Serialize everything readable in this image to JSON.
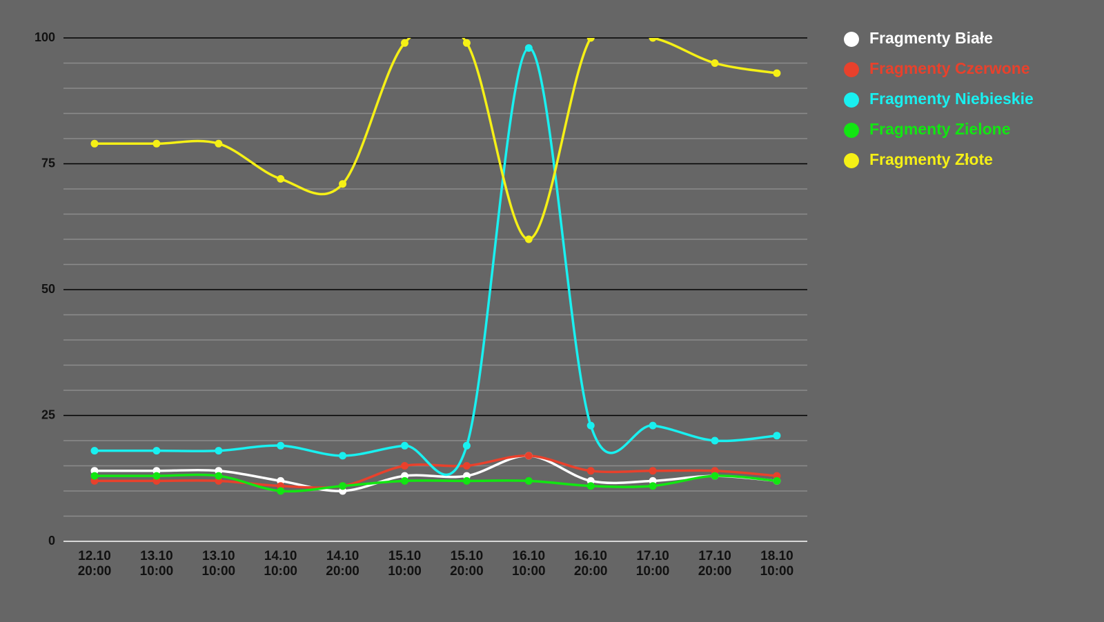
{
  "chart_data": {
    "type": "line",
    "categories": [
      "12.10\n20:00",
      "13.10\n10:00",
      "13.10\n10:00",
      "14.10\n10:00",
      "14.10\n20:00",
      "15.10\n10:00",
      "15.10\n20:00",
      "16.10\n10:00",
      "16.10\n20:00",
      "17.10\n10:00",
      "17.10\n20:00",
      "18.10\n10:00"
    ],
    "series": [
      {
        "name": "Fragmenty Białe",
        "color": "#ffffff",
        "values": [
          14,
          14,
          14,
          12,
          10,
          13,
          13,
          17,
          12,
          12,
          13,
          12
        ]
      },
      {
        "name": "Fragmenty Czerwone",
        "color": "#e8412c",
        "values": [
          12,
          12,
          12,
          11,
          11,
          15,
          15,
          17,
          14,
          14,
          14,
          13
        ]
      },
      {
        "name": "Fragmenty Niebieskie",
        "color": "#19f0f0",
        "values": [
          18,
          18,
          18,
          19,
          17,
          19,
          19,
          98,
          23,
          23,
          20,
          21
        ]
      },
      {
        "name": "Fragmenty Zielone",
        "color": "#12e612",
        "values": [
          13,
          13,
          13,
          10,
          11,
          12,
          12,
          12,
          11,
          11,
          13,
          12
        ]
      },
      {
        "name": "Fragmenty Złote",
        "color": "#f5f016",
        "values": [
          79,
          79,
          79,
          72,
          71,
          99,
          99,
          60,
          100,
          100,
          95,
          93
        ]
      }
    ],
    "ylim": [
      0,
      100
    ],
    "yticks": [
      0,
      25,
      50,
      75,
      100
    ],
    "minor_yticks": [
      5,
      10,
      15,
      20,
      30,
      35,
      40,
      45,
      55,
      60,
      65,
      70,
      80,
      85,
      90,
      95
    ],
    "grid": true,
    "legend": "right"
  }
}
